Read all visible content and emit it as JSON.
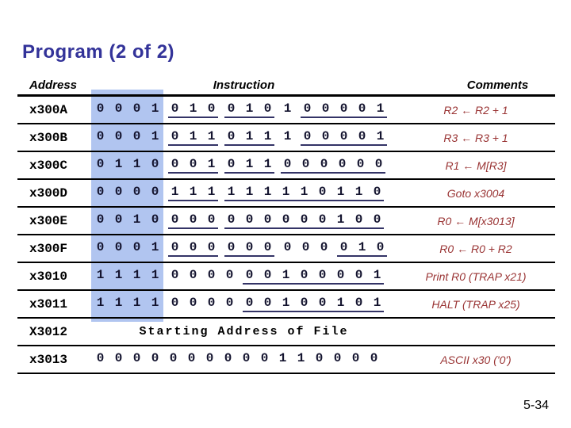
{
  "title": "Program (2 of 2)",
  "colors": {
    "title": "#333399",
    "highlight": "#b1c5f0",
    "underline": "#333366",
    "comment": "#993333"
  },
  "table": {
    "headers": [
      "Address",
      "Instruction",
      "Comments"
    ],
    "rows": [
      {
        "address": "x300A",
        "groups": [
          {
            "bits": "0001",
            "underline": false
          },
          {
            "bits": "010",
            "underline": true
          },
          {
            "bits": "010",
            "underline": true
          },
          {
            "bits": "1",
            "underline": false
          },
          {
            "bits": "00001",
            "underline": true
          }
        ],
        "comment": "R2 ← R2 + 1"
      },
      {
        "address": "x300B",
        "groups": [
          {
            "bits": "0001",
            "underline": false
          },
          {
            "bits": "011",
            "underline": true
          },
          {
            "bits": "011",
            "underline": true
          },
          {
            "bits": "1",
            "underline": false
          },
          {
            "bits": "00001",
            "underline": true
          }
        ],
        "comment": "R3 ← R3 + 1"
      },
      {
        "address": "x300C",
        "groups": [
          {
            "bits": "0110",
            "underline": false
          },
          {
            "bits": "001",
            "underline": true
          },
          {
            "bits": "011",
            "underline": true
          },
          {
            "bits": "000000",
            "underline": true
          }
        ],
        "comment": "R1 ← M[R3]"
      },
      {
        "address": "x300D",
        "groups": [
          {
            "bits": "0000",
            "underline": false
          },
          {
            "bits": "111",
            "underline": true
          },
          {
            "bits": "111110110",
            "underline": true
          }
        ],
        "comment": "Goto x3004"
      },
      {
        "address": "x300E",
        "groups": [
          {
            "bits": "0010",
            "underline": false
          },
          {
            "bits": "000",
            "underline": true
          },
          {
            "bits": "000000100",
            "underline": true
          }
        ],
        "comment": "R0 ← M[x3013]"
      },
      {
        "address": "x300F",
        "groups": [
          {
            "bits": "0001",
            "underline": false
          },
          {
            "bits": "000",
            "underline": true
          },
          {
            "bits": "000",
            "underline": true
          },
          {
            "bits": "000",
            "underline": false
          },
          {
            "bits": "010",
            "underline": true
          }
        ],
        "comment": "R0 ← R0 + R2"
      },
      {
        "address": "x3010",
        "groups": [
          {
            "bits": "1111",
            "underline": false
          },
          {
            "bits": "0000",
            "underline": false
          },
          {
            "bits": "00100001",
            "underline": true
          }
        ],
        "comment": "Print R0 (TRAP x21)"
      },
      {
        "address": "x3011",
        "groups": [
          {
            "bits": "1111",
            "underline": false
          },
          {
            "bits": "0000",
            "underline": false
          },
          {
            "bits": "00100101",
            "underline": true
          }
        ],
        "comment": "HALT (TRAP x25)"
      },
      {
        "address": "X3012",
        "text": "Starting Address of File",
        "comment": ""
      },
      {
        "address": "x3013",
        "groups": [
          {
            "bits": "0000000000110000",
            "underline": false
          }
        ],
        "comment": "ASCII x30 ('0')"
      }
    ]
  },
  "footer": {
    "page_number": "5-34"
  }
}
